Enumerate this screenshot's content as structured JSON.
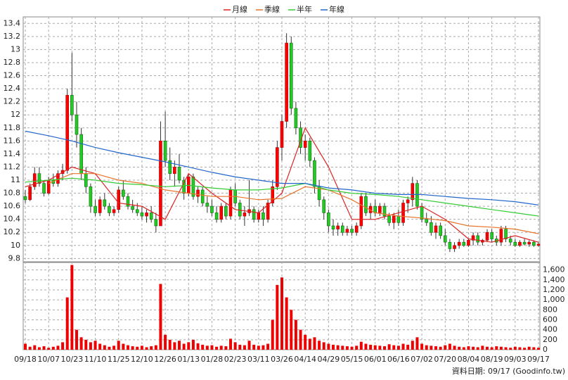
{
  "chart_data": {
    "type": "candlestick",
    "legend": "top",
    "up_color": "#ff0000",
    "down_color": "#22cc22",
    "categories": [
      "09/18",
      null,
      null,
      null,
      null,
      "10/07",
      null,
      null,
      null,
      null,
      "10/23",
      null,
      null,
      null,
      null,
      "11/10",
      null,
      null,
      null,
      null,
      "11/25",
      null,
      null,
      null,
      null,
      "12/10",
      null,
      null,
      null,
      null,
      "12/26",
      null,
      null,
      null,
      null,
      "01/13",
      null,
      null,
      null,
      null,
      "01/28",
      null,
      null,
      null,
      null,
      "02/23",
      null,
      null,
      null,
      null,
      "03/11",
      null,
      null,
      null,
      null,
      "03/26",
      null,
      null,
      null,
      null,
      "04/14",
      null,
      null,
      null,
      null,
      "04/29",
      null,
      null,
      null,
      null,
      "05/15",
      null,
      null,
      null,
      null,
      "06/01",
      null,
      null,
      null,
      null,
      "06/16",
      null,
      null,
      null,
      null,
      "07/02",
      null,
      null,
      null,
      null,
      "07/20",
      null,
      null,
      null,
      null,
      "08/04",
      null,
      null,
      null,
      null,
      "08/19",
      null,
      null,
      null,
      null,
      "09/03",
      null,
      null,
      null,
      null,
      "09/17"
    ],
    "ohlc": [
      [
        10.75,
        10.85,
        10.65,
        10.7
      ],
      [
        10.7,
        10.95,
        10.68,
        10.9
      ],
      [
        10.9,
        11.2,
        10.85,
        11.1
      ],
      [
        11.1,
        11.2,
        10.9,
        10.95
      ],
      [
        10.95,
        11.0,
        10.75,
        10.8
      ],
      [
        10.8,
        11.05,
        10.78,
        11.0
      ],
      [
        11.0,
        11.1,
        10.9,
        10.95
      ],
      [
        10.95,
        11.15,
        10.9,
        11.1
      ],
      [
        11.1,
        11.25,
        11.0,
        11.15
      ],
      [
        11.15,
        12.4,
        11.1,
        12.3
      ],
      [
        12.3,
        12.95,
        11.9,
        12.0
      ],
      [
        12.0,
        12.2,
        11.5,
        11.7
      ],
      [
        11.7,
        11.8,
        11.0,
        11.1
      ],
      [
        11.1,
        11.2,
        10.8,
        10.9
      ],
      [
        10.9,
        10.95,
        10.5,
        10.6
      ],
      [
        10.6,
        10.7,
        10.45,
        10.5
      ],
      [
        10.5,
        10.75,
        10.45,
        10.7
      ],
      [
        10.7,
        10.8,
        10.55,
        10.6
      ],
      [
        10.6,
        10.65,
        10.45,
        10.5
      ],
      [
        10.5,
        10.6,
        10.45,
        10.55
      ],
      [
        10.55,
        10.9,
        10.5,
        10.85
      ],
      [
        10.85,
        11.0,
        10.7,
        10.75
      ],
      [
        10.75,
        10.8,
        10.55,
        10.6
      ],
      [
        10.6,
        10.7,
        10.5,
        10.55
      ],
      [
        10.55,
        10.65,
        10.45,
        10.5
      ],
      [
        10.5,
        10.6,
        10.4,
        10.45
      ],
      [
        10.45,
        10.55,
        10.35,
        10.5
      ],
      [
        10.5,
        10.6,
        10.35,
        10.4
      ],
      [
        10.4,
        10.5,
        10.2,
        10.3
      ],
      [
        10.3,
        11.9,
        10.3,
        11.6
      ],
      [
        11.6,
        12.05,
        11.2,
        11.3
      ],
      [
        11.3,
        11.5,
        11.0,
        11.1
      ],
      [
        11.1,
        11.3,
        10.9,
        11.2
      ],
      [
        11.2,
        11.4,
        10.95,
        11.0
      ],
      [
        11.0,
        11.05,
        10.7,
        10.8
      ],
      [
        10.8,
        11.1,
        10.75,
        11.05
      ],
      [
        11.05,
        11.1,
        10.7,
        10.75
      ],
      [
        10.75,
        10.9,
        10.65,
        10.85
      ],
      [
        10.85,
        10.9,
        10.6,
        10.65
      ],
      [
        10.65,
        10.75,
        10.5,
        10.6
      ],
      [
        10.6,
        10.7,
        10.45,
        10.5
      ],
      [
        10.5,
        10.6,
        10.35,
        10.4
      ],
      [
        10.4,
        10.65,
        10.35,
        10.6
      ],
      [
        10.6,
        10.65,
        10.4,
        10.45
      ],
      [
        10.45,
        10.9,
        10.4,
        10.85
      ],
      [
        10.85,
        10.95,
        10.6,
        10.65
      ],
      [
        10.65,
        10.7,
        10.4,
        10.45
      ],
      [
        10.45,
        10.6,
        10.3,
        10.5
      ],
      [
        10.5,
        11.0,
        10.45,
        10.55
      ],
      [
        10.55,
        10.6,
        10.35,
        10.4
      ],
      [
        10.4,
        10.55,
        10.35,
        10.5
      ],
      [
        10.5,
        10.6,
        10.3,
        10.4
      ],
      [
        10.4,
        10.7,
        10.35,
        10.65
      ],
      [
        10.65,
        11.0,
        10.6,
        10.9
      ],
      [
        10.9,
        11.6,
        10.85,
        11.5
      ],
      [
        11.5,
        12.0,
        11.3,
        11.9
      ],
      [
        11.9,
        13.25,
        11.8,
        13.1
      ],
      [
        13.1,
        13.2,
        12.0,
        12.1
      ],
      [
        12.1,
        12.2,
        11.7,
        11.8
      ],
      [
        11.8,
        11.9,
        11.4,
        11.5
      ],
      [
        11.5,
        11.7,
        11.3,
        11.6
      ],
      [
        11.6,
        11.65,
        11.2,
        11.3
      ],
      [
        11.3,
        11.35,
        10.8,
        10.9
      ],
      [
        10.9,
        11.0,
        10.6,
        10.7
      ],
      [
        10.7,
        10.75,
        10.4,
        10.5
      ],
      [
        10.5,
        10.55,
        10.2,
        10.3
      ],
      [
        10.3,
        10.4,
        10.15,
        10.25
      ],
      [
        10.25,
        10.35,
        10.15,
        10.3
      ],
      [
        10.3,
        10.35,
        10.15,
        10.2
      ],
      [
        10.2,
        10.3,
        10.15,
        10.25
      ],
      [
        10.25,
        10.3,
        10.15,
        10.2
      ],
      [
        10.2,
        10.35,
        10.15,
        10.3
      ],
      [
        10.3,
        10.8,
        10.25,
        10.75
      ],
      [
        10.75,
        10.8,
        10.45,
        10.5
      ],
      [
        10.5,
        10.65,
        10.4,
        10.6
      ],
      [
        10.6,
        10.7,
        10.45,
        10.5
      ],
      [
        10.5,
        10.65,
        10.45,
        10.6
      ],
      [
        10.6,
        10.65,
        10.4,
        10.45
      ],
      [
        10.45,
        10.5,
        10.3,
        10.35
      ],
      [
        10.35,
        10.5,
        10.25,
        10.45
      ],
      [
        10.45,
        10.55,
        10.3,
        10.35
      ],
      [
        10.35,
        10.7,
        10.3,
        10.65
      ],
      [
        10.65,
        10.75,
        10.5,
        10.7
      ],
      [
        10.7,
        11.05,
        10.6,
        10.95
      ],
      [
        10.95,
        11.0,
        10.55,
        10.6
      ],
      [
        10.6,
        10.65,
        10.35,
        10.4
      ],
      [
        10.4,
        10.5,
        10.3,
        10.35
      ],
      [
        10.35,
        10.45,
        10.15,
        10.2
      ],
      [
        10.2,
        10.35,
        10.1,
        10.3
      ],
      [
        10.3,
        10.35,
        10.1,
        10.15
      ],
      [
        10.15,
        10.25,
        10.0,
        10.05
      ],
      [
        10.05,
        10.1,
        9.9,
        9.95
      ],
      [
        9.95,
        10.05,
        9.9,
        10.0
      ],
      [
        10.0,
        10.1,
        9.95,
        10.05
      ],
      [
        10.05,
        10.1,
        9.98,
        10.0
      ],
      [
        10.0,
        10.1,
        9.98,
        10.08
      ],
      [
        10.08,
        10.2,
        10.0,
        10.15
      ],
      [
        10.15,
        10.2,
        10.0,
        10.05
      ],
      [
        10.05,
        10.1,
        10.0,
        10.08
      ],
      [
        10.08,
        10.25,
        10.05,
        10.2
      ],
      [
        10.2,
        10.25,
        10.05,
        10.1
      ],
      [
        10.1,
        10.15,
        10.0,
        10.05
      ],
      [
        10.05,
        10.3,
        10.0,
        10.25
      ],
      [
        10.25,
        10.3,
        10.05,
        10.1
      ],
      [
        10.1,
        10.15,
        10.0,
        10.05
      ],
      [
        10.05,
        10.1,
        9.98,
        10.0
      ],
      [
        10.0,
        10.08,
        9.98,
        10.05
      ],
      [
        10.05,
        10.1,
        10.0,
        10.02
      ],
      [
        10.02,
        10.08,
        9.98,
        10.05
      ],
      [
        10.05,
        10.08,
        9.98,
        10.0
      ],
      [
        10.0,
        10.05,
        9.98,
        10.02
      ]
    ],
    "ylim": [
      9.75,
      13.5
    ],
    "yticks": [
      9.8,
      10,
      10.2,
      10.4,
      10.6,
      10.8,
      11,
      11.2,
      11.4,
      11.6,
      11.8,
      12,
      12.2,
      12.4,
      12.6,
      12.8,
      13,
      13.2,
      13.4
    ],
    "x": [
      0,
      5,
      10,
      15,
      20,
      25,
      30,
      35,
      40,
      45,
      50,
      55,
      60,
      65,
      70,
      75,
      80,
      85,
      90,
      95,
      100,
      105,
      110
    ],
    "series": [
      {
        "name": "月線",
        "color": "#dd2222",
        "values": [
          10.9,
          11.0,
          11.2,
          11.1,
          10.65,
          10.6,
          10.4,
          11.1,
          10.8,
          10.55,
          10.5,
          10.8,
          11.8,
          11.2,
          10.4,
          10.4,
          10.5,
          10.6,
          10.4,
          10.1,
          10.05,
          10.15,
          10.05
        ]
      },
      {
        "name": "季線",
        "color": "#e8742a",
        "values": [
          null,
          10.95,
          11.1,
          11.1,
          11.0,
          10.95,
          10.85,
          10.8,
          10.75,
          10.75,
          10.7,
          10.72,
          10.9,
          10.85,
          10.7,
          10.5,
          10.45,
          10.42,
          10.38,
          10.3,
          10.28,
          10.25,
          10.18
        ]
      },
      {
        "name": "半年",
        "color": "#33cc33",
        "values": [
          10.97,
          11.0,
          11.03,
          11.0,
          10.95,
          10.93,
          10.9,
          10.92,
          10.88,
          10.85,
          10.85,
          10.88,
          10.95,
          10.85,
          10.8,
          10.78,
          10.75,
          10.7,
          10.65,
          10.6,
          10.55,
          10.5,
          10.45
        ]
      },
      {
        "name": "年線",
        "color": "#2266cc",
        "values": [
          11.75,
          11.68,
          11.6,
          11.5,
          11.42,
          11.35,
          11.28,
          11.2,
          11.12,
          11.05,
          11.0,
          10.95,
          10.95,
          10.88,
          10.85,
          10.8,
          10.78,
          10.78,
          10.75,
          10.72,
          10.7,
          10.67,
          10.62
        ]
      }
    ],
    "volume": {
      "color": "#ee0000",
      "values": [
        120,
        60,
        90,
        50,
        70,
        40,
        60,
        80,
        150,
        1050,
        1700,
        400,
        250,
        200,
        150,
        180,
        120,
        90,
        60,
        80,
        180,
        120,
        90,
        70,
        60,
        80,
        50,
        70,
        90,
        1320,
        300,
        200,
        150,
        180,
        120,
        150,
        200,
        130,
        100,
        80,
        90,
        60,
        80,
        70,
        220,
        150,
        100,
        90,
        180,
        100,
        80,
        90,
        120,
        600,
        1300,
        1450,
        1050,
        800,
        600,
        400,
        300,
        220,
        250,
        180,
        150,
        120,
        100,
        90,
        80,
        70,
        60,
        80,
        160,
        120,
        100,
        90,
        80,
        70,
        110,
        90,
        80,
        120,
        100,
        180,
        250,
        120,
        90,
        80,
        70,
        60,
        90,
        120,
        80,
        60,
        50,
        70,
        60,
        50,
        80,
        60,
        50,
        70,
        60,
        50,
        40,
        60,
        50,
        40,
        60,
        50,
        40
      ],
      "ylim": [
        0,
        1750
      ],
      "yticks": [
        0,
        200,
        400,
        600,
        800,
        {
          "value": 1000,
          "label": "1,000"
        },
        {
          "value": 1200,
          "label": "1,200"
        },
        {
          "value": 1400,
          "label": "1,400"
        },
        {
          "value": 1600,
          "label": "1,600"
        }
      ]
    },
    "footer": "資料日期: 09/17 (Goodinfo.tw)"
  }
}
